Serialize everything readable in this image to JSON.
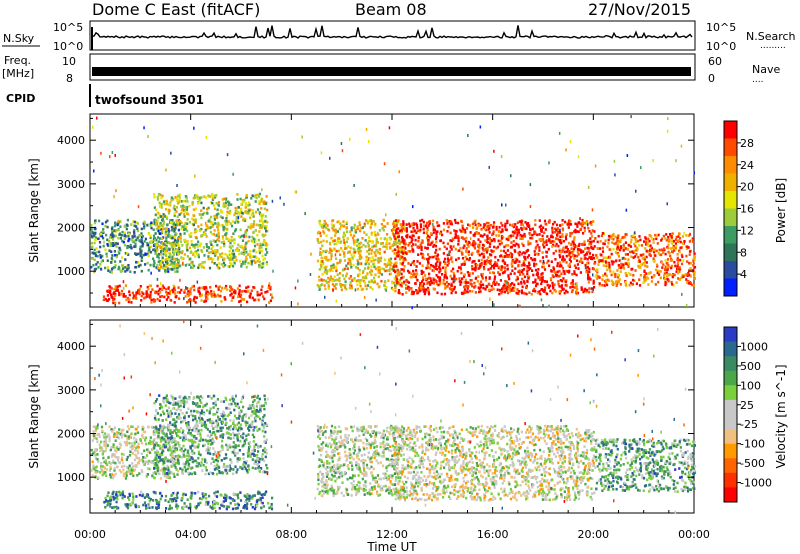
{
  "header": {
    "radar": "Dome C East (fitACF)",
    "beam": "Beam 08",
    "date": "27/Nov/2015"
  },
  "top_panels": {
    "nsky_label": "N.Sky",
    "nsky_ticks": [
      "10^5",
      "10^0"
    ],
    "nsearch_label": "N.Search",
    "nsearch_dots": ".........",
    "nsearch_ticks": [
      "10^5",
      "10^0"
    ],
    "freq_label_1": "Freq.",
    "freq_label_2": "[MHz]",
    "freq_ticks": [
      "10",
      "8"
    ],
    "nave_label": "Nave",
    "nave_dots": "....",
    "nave_ticks": [
      "60",
      "0"
    ],
    "cpid_label": "CPID",
    "cpid_value": "twofsound 3501"
  },
  "chart_data": [
    {
      "type": "heatmap",
      "title": "",
      "xlabel": "Time UT",
      "ylabel": "Slant Range [km]",
      "x_ticks": [
        "00:00",
        "04:00",
        "08:00",
        "12:00",
        "16:00",
        "20:00",
        "00:00"
      ],
      "x_range_hours": [
        0,
        24
      ],
      "y_ticks": [
        1000,
        2000,
        3000,
        4000
      ],
      "y_range_km": [
        180,
        4600
      ],
      "colorbar": {
        "label": "Power [dB]",
        "ticks": [
          "28",
          "24",
          "20",
          "16",
          "12",
          "8",
          "4"
        ],
        "colors": [
          "#ff0000",
          "#ff4a00",
          "#ff8c00",
          "#f0b000",
          "#e4e600",
          "#9ccc3c",
          "#3c9c64",
          "#2e7458",
          "#2a4ca0",
          "#0020ff"
        ]
      },
      "clusters": [
        {
          "t0": 0.5,
          "t1": 7.2,
          "r0": 300,
          "r1": 700,
          "level": 0.9
        },
        {
          "t0": 0.0,
          "t1": 3.5,
          "r0": 1000,
          "r1": 2200,
          "level": 0.3
        },
        {
          "t0": 2.5,
          "t1": 7.0,
          "r0": 1100,
          "r1": 2800,
          "level": 0.5
        },
        {
          "t0": 9.0,
          "t1": 12.5,
          "r0": 600,
          "r1": 2200,
          "level": 0.6
        },
        {
          "t0": 12.0,
          "t1": 20.0,
          "r0": 500,
          "r1": 2200,
          "level": 0.95
        },
        {
          "t0": 20.0,
          "t1": 24.0,
          "r0": 700,
          "r1": 1900,
          "level": 0.8
        }
      ]
    },
    {
      "type": "heatmap",
      "title": "",
      "xlabel": "Time UT",
      "ylabel": "Slant Range [km]",
      "x_ticks": [
        "00:00",
        "04:00",
        "08:00",
        "12:00",
        "16:00",
        "20:00",
        "00:00"
      ],
      "x_range_hours": [
        0,
        24
      ],
      "y_ticks": [
        1000,
        2000,
        3000,
        4000
      ],
      "y_range_km": [
        180,
        4600
      ],
      "colorbar": {
        "label": "Velocity [m s^-1]",
        "ticks": [
          "1000",
          "500",
          "100",
          "25",
          "-25",
          "-100",
          "-500",
          "-1000"
        ],
        "colors": [
          "#2a3cc4",
          "#2a6890",
          "#3a8a62",
          "#4aa84a",
          "#7ad03c",
          "#c8c8c8",
          "#c8c8c8",
          "#f0c080",
          "#ff9a00",
          "#ff6400",
          "#ff3000",
          "#ff0000"
        ]
      },
      "clusters": [
        {
          "t0": 0.5,
          "t1": 7.2,
          "r0": 300,
          "r1": 700,
          "level": 0.8
        },
        {
          "t0": 0.0,
          "t1": 3.5,
          "r0": 1000,
          "r1": 2200,
          "level": 0.55
        },
        {
          "t0": 2.5,
          "t1": 7.0,
          "r0": 1100,
          "r1": 2900,
          "level": 0.7
        },
        {
          "t0": 9.0,
          "t1": 12.5,
          "r0": 600,
          "r1": 2200,
          "level": 0.55
        },
        {
          "t0": 12.0,
          "t1": 20.0,
          "r0": 500,
          "r1": 2200,
          "level": 0.5
        },
        {
          "t0": 20.0,
          "t1": 24.0,
          "r0": 700,
          "r1": 1900,
          "level": 0.7
        }
      ]
    }
  ]
}
